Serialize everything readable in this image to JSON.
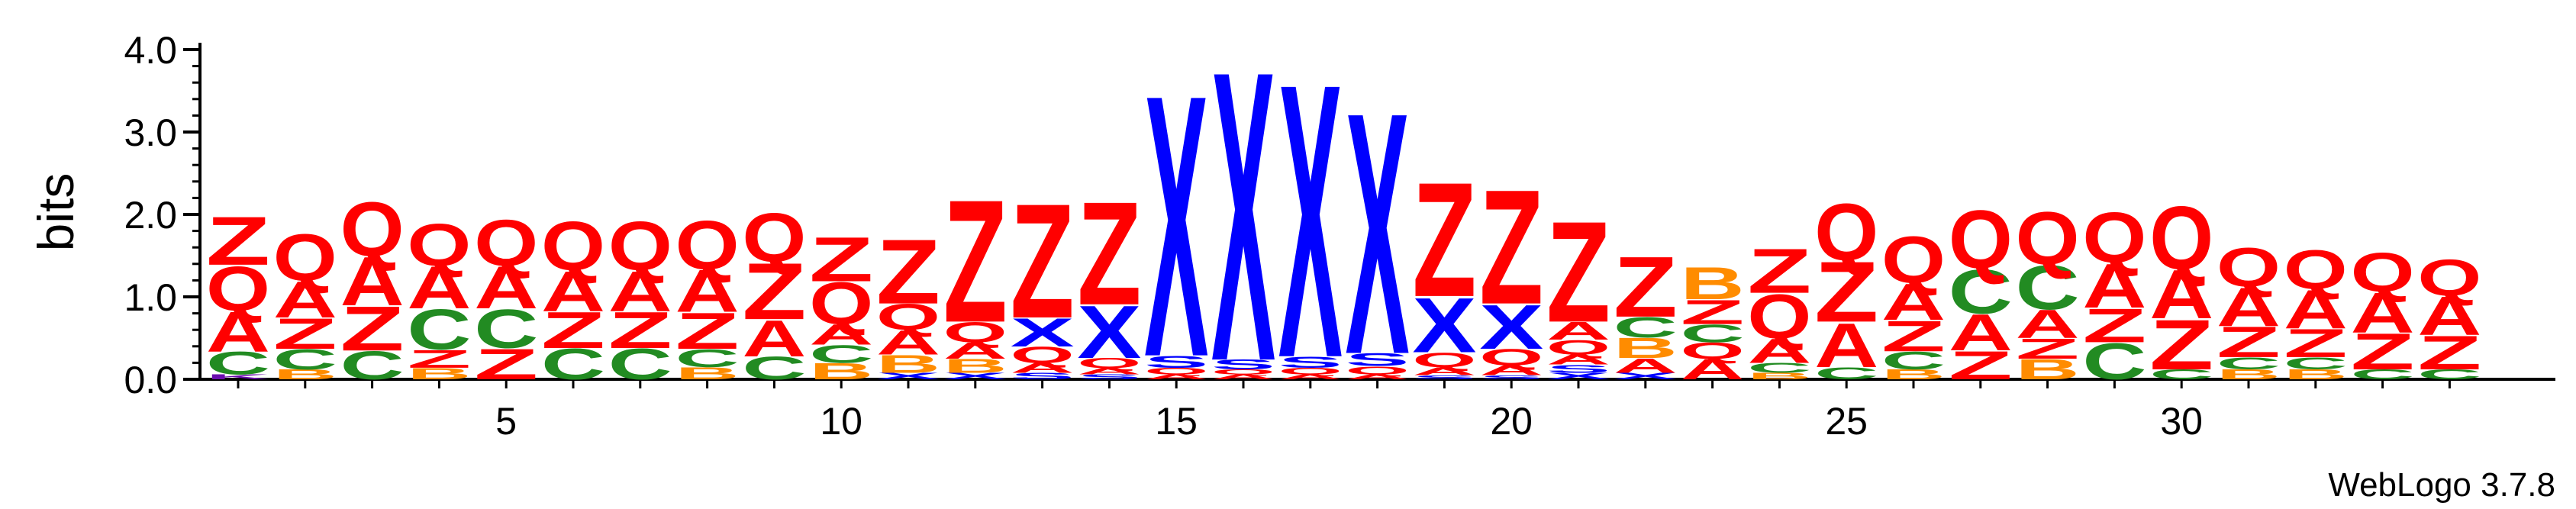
{
  "chart_data": {
    "type": "sequence-logo",
    "ylabel": "bits",
    "ylim": [
      0,
      4.0
    ],
    "yticks": [
      "0.0",
      "1.0",
      "2.0",
      "3.0",
      "4.0"
    ],
    "xticks": [
      "5",
      "10",
      "15",
      "20",
      "25",
      "30"
    ],
    "credit": "WebLogo 3.7.8",
    "num_positions": 34,
    "colors": {
      "Q": "#FF0000",
      "Z": "#FF0000",
      "A": "#FF0000",
      "C": "#228B22",
      "X": "#0000FF",
      "S": "#0000FF",
      "B": "#FF8C00",
      "K": "#6A0DAD"
    },
    "positions": [
      {
        "pos": 1,
        "letters": [
          {
            "l": "K",
            "h": 0.06
          },
          {
            "l": "C",
            "h": 0.28
          },
          {
            "l": "A",
            "h": 0.5
          },
          {
            "l": "Q",
            "h": 0.55
          },
          {
            "l": "Z",
            "h": 0.6
          }
        ]
      },
      {
        "pos": 2,
        "letters": [
          {
            "l": "B",
            "h": 0.12
          },
          {
            "l": "C",
            "h": 0.25
          },
          {
            "l": "Z",
            "h": 0.38
          },
          {
            "l": "A",
            "h": 0.45
          },
          {
            "l": "Q",
            "h": 0.58
          }
        ]
      },
      {
        "pos": 3,
        "letters": [
          {
            "l": "C",
            "h": 0.35
          },
          {
            "l": "Z",
            "h": 0.55
          },
          {
            "l": "A",
            "h": 0.6
          },
          {
            "l": "Q",
            "h": 0.67
          }
        ]
      },
      {
        "pos": 4,
        "letters": [
          {
            "l": "B",
            "h": 0.14
          },
          {
            "l": "Z",
            "h": 0.22
          },
          {
            "l": "C",
            "h": 0.5
          },
          {
            "l": "A",
            "h": 0.52
          },
          {
            "l": "Q",
            "h": 0.52
          }
        ]
      },
      {
        "pos": 5,
        "letters": [
          {
            "l": "Z",
            "h": 0.38
          },
          {
            "l": "C",
            "h": 0.48
          },
          {
            "l": "A",
            "h": 0.52
          },
          {
            "l": "Q",
            "h": 0.57
          }
        ]
      },
      {
        "pos": 6,
        "letters": [
          {
            "l": "C",
            "h": 0.38
          },
          {
            "l": "Z",
            "h": 0.45
          },
          {
            "l": "A",
            "h": 0.5
          },
          {
            "l": "Q",
            "h": 0.6
          }
        ]
      },
      {
        "pos": 7,
        "letters": [
          {
            "l": "C",
            "h": 0.38
          },
          {
            "l": "Z",
            "h": 0.45
          },
          {
            "l": "A",
            "h": 0.5
          },
          {
            "l": "Q",
            "h": 0.6
          }
        ]
      },
      {
        "pos": 8,
        "letters": [
          {
            "l": "B",
            "h": 0.15
          },
          {
            "l": "C",
            "h": 0.22
          },
          {
            "l": "Z",
            "h": 0.45
          },
          {
            "l": "A",
            "h": 0.52
          },
          {
            "l": "Q",
            "h": 0.6
          }
        ]
      },
      {
        "pos": 9,
        "letters": [
          {
            "l": "C",
            "h": 0.28
          },
          {
            "l": "A",
            "h": 0.45
          },
          {
            "l": "Z",
            "h": 0.7
          },
          {
            "l": "Q",
            "h": 0.6
          }
        ]
      },
      {
        "pos": 10,
        "letters": [
          {
            "l": "B",
            "h": 0.2
          },
          {
            "l": "C",
            "h": 0.22
          },
          {
            "l": "A",
            "h": 0.25
          },
          {
            "l": "Q",
            "h": 0.52
          },
          {
            "l": "Z",
            "h": 0.55
          }
        ]
      },
      {
        "pos": 11,
        "letters": [
          {
            "l": "X",
            "h": 0.08
          },
          {
            "l": "B",
            "h": 0.22
          },
          {
            "l": "A",
            "h": 0.3
          },
          {
            "l": "Q",
            "h": 0.32
          },
          {
            "l": "Z",
            "h": 0.8
          }
        ]
      },
      {
        "pos": 12,
        "letters": [
          {
            "l": "X",
            "h": 0.08
          },
          {
            "l": "B",
            "h": 0.17
          },
          {
            "l": "A",
            "h": 0.2
          },
          {
            "l": "Q",
            "h": 0.25
          },
          {
            "l": "Z",
            "h": 1.52
          }
        ]
      },
      {
        "pos": 13,
        "letters": [
          {
            "l": "S",
            "h": 0.08
          },
          {
            "l": "A",
            "h": 0.12
          },
          {
            "l": "Q",
            "h": 0.2
          },
          {
            "l": "X",
            "h": 0.35
          },
          {
            "l": "Z",
            "h": 1.42
          }
        ]
      },
      {
        "pos": 14,
        "letters": [
          {
            "l": "S",
            "h": 0.06
          },
          {
            "l": "A",
            "h": 0.08
          },
          {
            "l": "Q",
            "h": 0.12
          },
          {
            "l": "X",
            "h": 0.65
          },
          {
            "l": "Z",
            "h": 1.28
          }
        ]
      },
      {
        "pos": 15,
        "letters": [
          {
            "l": "A",
            "h": 0.06
          },
          {
            "l": "Q",
            "h": 0.08
          },
          {
            "l": "S",
            "h": 0.15
          },
          {
            "l": "X",
            "h": 3.25
          }
        ]
      },
      {
        "pos": 16,
        "letters": [
          {
            "l": "A",
            "h": 0.06
          },
          {
            "l": "Q",
            "h": 0.06
          },
          {
            "l": "S",
            "h": 0.12
          },
          {
            "l": "X",
            "h": 3.6
          }
        ]
      },
      {
        "pos": 17,
        "letters": [
          {
            "l": "A",
            "h": 0.06
          },
          {
            "l": "Q",
            "h": 0.08
          },
          {
            "l": "S",
            "h": 0.14
          },
          {
            "l": "X",
            "h": 3.4
          }
        ]
      },
      {
        "pos": 18,
        "letters": [
          {
            "l": "A",
            "h": 0.06
          },
          {
            "l": "Q",
            "h": 0.1
          },
          {
            "l": "S",
            "h": 0.16
          },
          {
            "l": "X",
            "h": 3.0
          }
        ]
      },
      {
        "pos": 19,
        "letters": [
          {
            "l": "S",
            "h": 0.05
          },
          {
            "l": "A",
            "h": 0.1
          },
          {
            "l": "Q",
            "h": 0.18
          },
          {
            "l": "X",
            "h": 0.68
          },
          {
            "l": "Z",
            "h": 1.42
          }
        ]
      },
      {
        "pos": 20,
        "letters": [
          {
            "l": "S",
            "h": 0.05
          },
          {
            "l": "A",
            "h": 0.12
          },
          {
            "l": "Q",
            "h": 0.2
          },
          {
            "l": "X",
            "h": 0.55
          },
          {
            "l": "Z",
            "h": 1.42
          }
        ]
      },
      {
        "pos": 21,
        "letters": [
          {
            "l": "X",
            "h": 0.08
          },
          {
            "l": "S",
            "h": 0.1
          },
          {
            "l": "A",
            "h": 0.12
          },
          {
            "l": "Q",
            "h": 0.18
          },
          {
            "l": "A",
            "h": 0.22
          },
          {
            "l": "Z",
            "h": 1.25
          }
        ]
      },
      {
        "pos": 22,
        "letters": [
          {
            "l": "X",
            "h": 0.08
          },
          {
            "l": "A",
            "h": 0.18
          },
          {
            "l": "B",
            "h": 0.25
          },
          {
            "l": "C",
            "h": 0.25
          },
          {
            "l": "Z",
            "h": 0.75
          }
        ]
      },
      {
        "pos": 23,
        "letters": [
          {
            "l": "A",
            "h": 0.25
          },
          {
            "l": "Q",
            "h": 0.2
          },
          {
            "l": "C",
            "h": 0.22
          },
          {
            "l": "Z",
            "h": 0.3
          },
          {
            "l": "B",
            "h": 0.4
          }
        ]
      },
      {
        "pos": 24,
        "letters": [
          {
            "l": "B",
            "h": 0.08
          },
          {
            "l": "C",
            "h": 0.12
          },
          {
            "l": "A",
            "h": 0.3
          },
          {
            "l": "Q",
            "h": 0.55
          },
          {
            "l": "Z",
            "h": 0.55
          }
        ]
      },
      {
        "pos": 25,
        "letters": [
          {
            "l": "C",
            "h": 0.15
          },
          {
            "l": "A",
            "h": 0.55
          },
          {
            "l": "Z",
            "h": 0.75
          },
          {
            "l": "Q",
            "h": 0.7
          }
        ]
      },
      {
        "pos": 26,
        "letters": [
          {
            "l": "B",
            "h": 0.12
          },
          {
            "l": "C",
            "h": 0.22
          },
          {
            "l": "Z",
            "h": 0.38
          },
          {
            "l": "A",
            "h": 0.45
          },
          {
            "l": "Q",
            "h": 0.58
          }
        ]
      },
      {
        "pos": 27,
        "letters": [
          {
            "l": "Z",
            "h": 0.35
          },
          {
            "l": "A",
            "h": 0.45
          },
          {
            "l": "C",
            "h": 0.55
          },
          {
            "l": "Q",
            "h": 0.72
          }
        ]
      },
      {
        "pos": 28,
        "letters": [
          {
            "l": "B",
            "h": 0.25
          },
          {
            "l": "Z",
            "h": 0.25
          },
          {
            "l": "A",
            "h": 0.35
          },
          {
            "l": "C",
            "h": 0.55
          },
          {
            "l": "Q",
            "h": 0.65
          }
        ]
      },
      {
        "pos": 29,
        "letters": [
          {
            "l": "C",
            "h": 0.45
          },
          {
            "l": "Z",
            "h": 0.42
          },
          {
            "l": "A",
            "h": 0.55
          },
          {
            "l": "Q",
            "h": 0.62
          }
        ]
      },
      {
        "pos": 30,
        "letters": [
          {
            "l": "C",
            "h": 0.12
          },
          {
            "l": "Z",
            "h": 0.62
          },
          {
            "l": "A",
            "h": 0.6
          },
          {
            "l": "Q",
            "h": 0.78
          }
        ]
      },
      {
        "pos": 31,
        "letters": [
          {
            "l": "B",
            "h": 0.12
          },
          {
            "l": "C",
            "h": 0.15
          },
          {
            "l": "Z",
            "h": 0.38
          },
          {
            "l": "A",
            "h": 0.48
          },
          {
            "l": "Q",
            "h": 0.48
          }
        ]
      },
      {
        "pos": 32,
        "letters": [
          {
            "l": "B",
            "h": 0.12
          },
          {
            "l": "C",
            "h": 0.15
          },
          {
            "l": "Z",
            "h": 0.35
          },
          {
            "l": "A",
            "h": 0.48
          },
          {
            "l": "Q",
            "h": 0.48
          }
        ]
      },
      {
        "pos": 33,
        "letters": [
          {
            "l": "C",
            "h": 0.12
          },
          {
            "l": "Z",
            "h": 0.45
          },
          {
            "l": "A",
            "h": 0.5
          },
          {
            "l": "Q",
            "h": 0.48
          }
        ]
      },
      {
        "pos": 34,
        "letters": [
          {
            "l": "C",
            "h": 0.12
          },
          {
            "l": "Z",
            "h": 0.42
          },
          {
            "l": "A",
            "h": 0.48
          },
          {
            "l": "Q",
            "h": 0.45
          }
        ]
      }
    ]
  }
}
